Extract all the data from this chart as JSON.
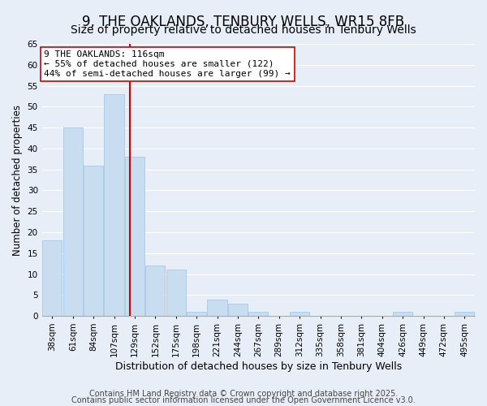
{
  "title": "9, THE OAKLANDS, TENBURY WELLS, WR15 8FB",
  "subtitle": "Size of property relative to detached houses in Tenbury Wells",
  "xlabel": "Distribution of detached houses by size in Tenbury Wells",
  "ylabel": "Number of detached properties",
  "bar_values": [
    18,
    45,
    36,
    53,
    38,
    12,
    11,
    1,
    4,
    3,
    1,
    0,
    1,
    0,
    0,
    0,
    0,
    1,
    0,
    0,
    1
  ],
  "ylim": [
    0,
    65
  ],
  "yticks": [
    0,
    5,
    10,
    15,
    20,
    25,
    30,
    35,
    40,
    45,
    50,
    55,
    60,
    65
  ],
  "bar_color": "#c9ddf0",
  "bar_edge_color": "#a8c8e8",
  "vline_x_index": 3.78,
  "vline_color": "#cc0000",
  "annotation_title": "9 THE OAKLANDS: 116sqm",
  "annotation_line1": "← 55% of detached houses are smaller (122)",
  "annotation_line2": "44% of semi-detached houses are larger (99) →",
  "annotation_box_facecolor": "#ffffff",
  "annotation_box_edgecolor": "#cc0000",
  "footer1": "Contains HM Land Registry data © Crown copyright and database right 2025.",
  "footer2": "Contains public sector information licensed under the Open Government Licence v3.0.",
  "background_color": "#e8eef8",
  "plot_background": "#e8eef8",
  "title_fontsize": 12,
  "subtitle_fontsize": 10,
  "all_labels": [
    "38sqm",
    "61sqm",
    "84sqm",
    "107sqm",
    "129sqm",
    "152sqm",
    "175sqm",
    "198sqm",
    "221sqm",
    "244sqm",
    "267sqm",
    "289sqm",
    "312sqm",
    "335sqm",
    "358sqm",
    "381sqm",
    "404sqm",
    "426sqm",
    "449sqm",
    "472sqm",
    "495sqm"
  ],
  "grid_color": "#ffffff",
  "tick_fontsize": 7.5,
  "footer_fontsize": 7,
  "footer_color": "#444444"
}
